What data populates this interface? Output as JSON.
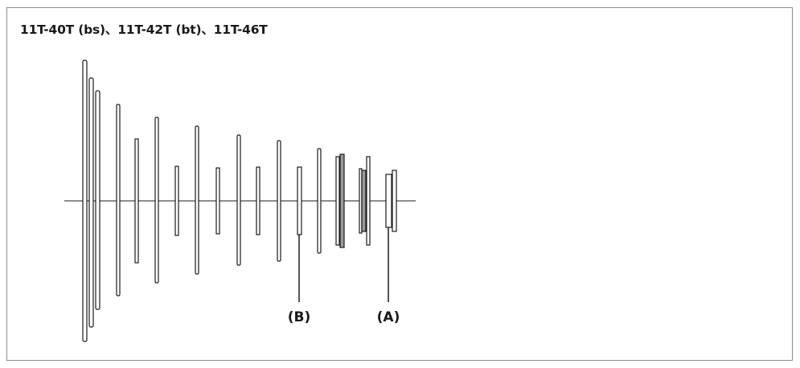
{
  "title": "11T-40T (bs)、11T-42T (bt)、11T-46T",
  "callouts": [
    {
      "id": "B",
      "label": "(B)"
    },
    {
      "id": "A",
      "label": "(A)"
    }
  ]
}
